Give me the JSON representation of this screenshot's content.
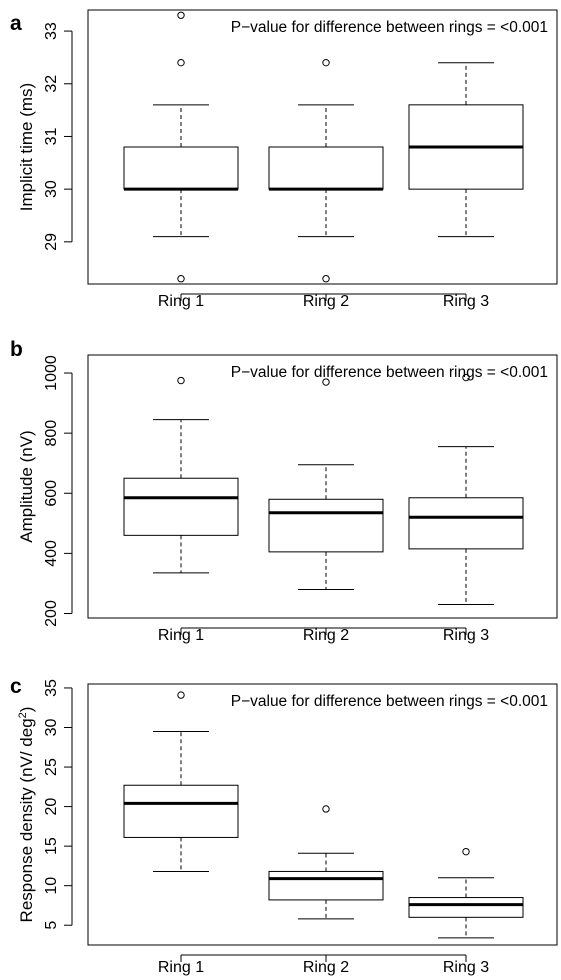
{
  "chart_data": [
    {
      "type": "box",
      "panel_label": "a",
      "annotation": "P−value for difference between rings = <0.001",
      "ylabel": "Implicit time (ms)",
      "ylim": [
        28.2,
        33.4
      ],
      "yticks": [
        29,
        30,
        31,
        32,
        33
      ],
      "categories": [
        "Ring 1",
        "Ring 2",
        "Ring 3"
      ],
      "boxes": [
        {
          "category": "Ring 1",
          "whisker_low": 29.1,
          "q1": 30.0,
          "median": 30.0,
          "q3": 30.8,
          "whisker_high": 31.6,
          "outliers": [
            28.3,
            32.4,
            33.3
          ]
        },
        {
          "category": "Ring 2",
          "whisker_low": 29.1,
          "q1": 30.0,
          "median": 30.0,
          "q3": 30.8,
          "whisker_high": 31.6,
          "outliers": [
            28.3,
            32.4
          ]
        },
        {
          "category": "Ring 3",
          "whisker_low": 29.1,
          "q1": 30.0,
          "median": 30.8,
          "q3": 31.6,
          "whisker_high": 32.4,
          "outliers": []
        }
      ]
    },
    {
      "type": "box",
      "panel_label": "b",
      "annotation": "P−value for difference between rings = <0.001",
      "ylabel": "Amplitude (nV)",
      "ylim": [
        185,
        1060
      ],
      "yticks": [
        200,
        400,
        600,
        800,
        1000
      ],
      "categories": [
        "Ring 1",
        "Ring 2",
        "Ring 3"
      ],
      "boxes": [
        {
          "category": "Ring 1",
          "whisker_low": 335,
          "q1": 460,
          "median": 585,
          "q3": 650,
          "whisker_high": 845,
          "outliers": [
            975
          ]
        },
        {
          "category": "Ring 2",
          "whisker_low": 280,
          "q1": 405,
          "median": 535,
          "q3": 580,
          "whisker_high": 695,
          "outliers": [
            970
          ]
        },
        {
          "category": "Ring 3",
          "whisker_low": 230,
          "q1": 415,
          "median": 520,
          "q3": 585,
          "whisker_high": 755,
          "outliers": [
            985
          ]
        }
      ]
    },
    {
      "type": "box",
      "panel_label": "c",
      "annotation": "P−value for difference between rings = <0.001",
      "ylabel": "Response density (nV/ deg²)",
      "ylim": [
        2.5,
        35.5
      ],
      "yticks": [
        5,
        10,
        15,
        20,
        25,
        30,
        35
      ],
      "categories": [
        "Ring 1",
        "Ring 2",
        "Ring 3"
      ],
      "boxes": [
        {
          "category": "Ring 1",
          "whisker_low": 11.8,
          "q1": 16.1,
          "median": 20.4,
          "q3": 22.7,
          "whisker_high": 29.5,
          "outliers": [
            34.1
          ]
        },
        {
          "category": "Ring 2",
          "whisker_low": 5.8,
          "q1": 8.2,
          "median": 10.9,
          "q3": 11.8,
          "whisker_high": 14.1,
          "outliers": [
            19.7
          ]
        },
        {
          "category": "Ring 3",
          "whisker_low": 3.4,
          "q1": 6.0,
          "median": 7.6,
          "q3": 8.5,
          "whisker_high": 11.0,
          "outliers": [
            14.3
          ]
        }
      ]
    }
  ]
}
